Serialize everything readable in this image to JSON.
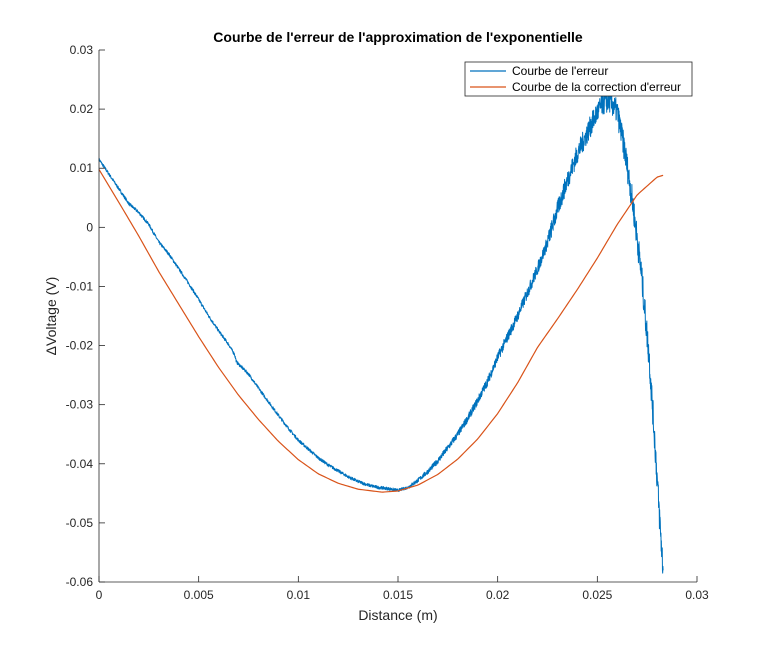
{
  "colors": {
    "series_1": "#0072BD",
    "series_2": "#D95319",
    "axis": "#262626",
    "legend_border": "#262626"
  },
  "chart_data": {
    "type": "line",
    "title": "Courbe de l'erreur de l'approximation de l'exponentielle",
    "xlabel": "Distance (m)",
    "ylabel": "ΔVoltage (V)",
    "xlim": [
      0,
      0.03
    ],
    "ylim": [
      -0.06,
      0.03
    ],
    "xticks": [
      0,
      0.005,
      0.01,
      0.015,
      0.02,
      0.025,
      0.03
    ],
    "xtick_labels": [
      "0",
      "0.005",
      "0.01",
      "0.015",
      "0.02",
      "0.025",
      "0.03"
    ],
    "yticks": [
      -0.06,
      -0.05,
      -0.04,
      -0.03,
      -0.02,
      -0.01,
      0,
      0.01,
      0.02,
      0.03
    ],
    "ytick_labels": [
      "-0.06",
      "-0.05",
      "-0.04",
      "-0.03",
      "-0.02",
      "-0.01",
      "0",
      "0.01",
      "0.02",
      "0.03"
    ],
    "grid": false,
    "legend_position": "top-right",
    "series": [
      {
        "name": "Courbe de l'erreur",
        "color": "#0072BD",
        "noisy": true,
        "x": [
          0,
          0.0005,
          0.001,
          0.0015,
          0.002,
          0.0025,
          0.003,
          0.0035,
          0.004,
          0.0045,
          0.005,
          0.0055,
          0.006,
          0.0065,
          0.0068,
          0.0069,
          0.0075,
          0.008,
          0.0085,
          0.009,
          0.0095,
          0.01,
          0.0105,
          0.011,
          0.0115,
          0.012,
          0.0125,
          0.013,
          0.0135,
          0.014,
          0.0145,
          0.015,
          0.0155,
          0.016,
          0.0165,
          0.017,
          0.0175,
          0.018,
          0.0185,
          0.019,
          0.0195,
          0.02,
          0.0205,
          0.021,
          0.0215,
          0.022,
          0.0225,
          0.023,
          0.0235,
          0.024,
          0.0245,
          0.025,
          0.0253,
          0.0256,
          0.026,
          0.0264,
          0.0268,
          0.0272,
          0.0276,
          0.0279,
          0.0281,
          0.0283
        ],
        "y": [
          0.0115,
          0.009,
          0.0065,
          0.004,
          0.0025,
          0.0005,
          -0.0025,
          -0.0045,
          -0.007,
          -0.0095,
          -0.0122,
          -0.015,
          -0.0175,
          -0.0198,
          -0.0215,
          -0.0228,
          -0.0248,
          -0.0272,
          -0.0295,
          -0.0318,
          -0.034,
          -0.036,
          -0.0375,
          -0.039,
          -0.0402,
          -0.0412,
          -0.0422,
          -0.043,
          -0.0436,
          -0.044,
          -0.0442,
          -0.0445,
          -0.044,
          -0.0428,
          -0.0413,
          -0.0395,
          -0.0373,
          -0.035,
          -0.0323,
          -0.0293,
          -0.026,
          -0.022,
          -0.0185,
          -0.015,
          -0.011,
          -0.007,
          -0.0025,
          0.003,
          0.008,
          0.0125,
          0.016,
          0.0195,
          0.021,
          0.0215,
          0.0195,
          0.0125,
          0.0035,
          -0.0075,
          -0.022,
          -0.037,
          -0.048,
          -0.058
        ]
      },
      {
        "name": "Courbe de la correction d'erreur",
        "color": "#D95319",
        "noisy": false,
        "x": [
          0,
          0.001,
          0.002,
          0.003,
          0.004,
          0.005,
          0.006,
          0.007,
          0.008,
          0.009,
          0.01,
          0.011,
          0.012,
          0.013,
          0.0142,
          0.015,
          0.016,
          0.017,
          0.018,
          0.019,
          0.02,
          0.021,
          0.022,
          0.023,
          0.024,
          0.025,
          0.026,
          0.027,
          0.028,
          0.0283
        ],
        "y": [
          0.0098,
          0.0042,
          -0.0015,
          -0.0075,
          -0.013,
          -0.0185,
          -0.0237,
          -0.0284,
          -0.0325,
          -0.0362,
          -0.0393,
          -0.0417,
          -0.0433,
          -0.0443,
          -0.0448,
          -0.0446,
          -0.0436,
          -0.0418,
          -0.0392,
          -0.0358,
          -0.0315,
          -0.0263,
          -0.0203,
          -0.0155,
          -0.0105,
          -0.0052,
          0.0005,
          0.0055,
          0.0085,
          0.0088
        ]
      }
    ]
  }
}
